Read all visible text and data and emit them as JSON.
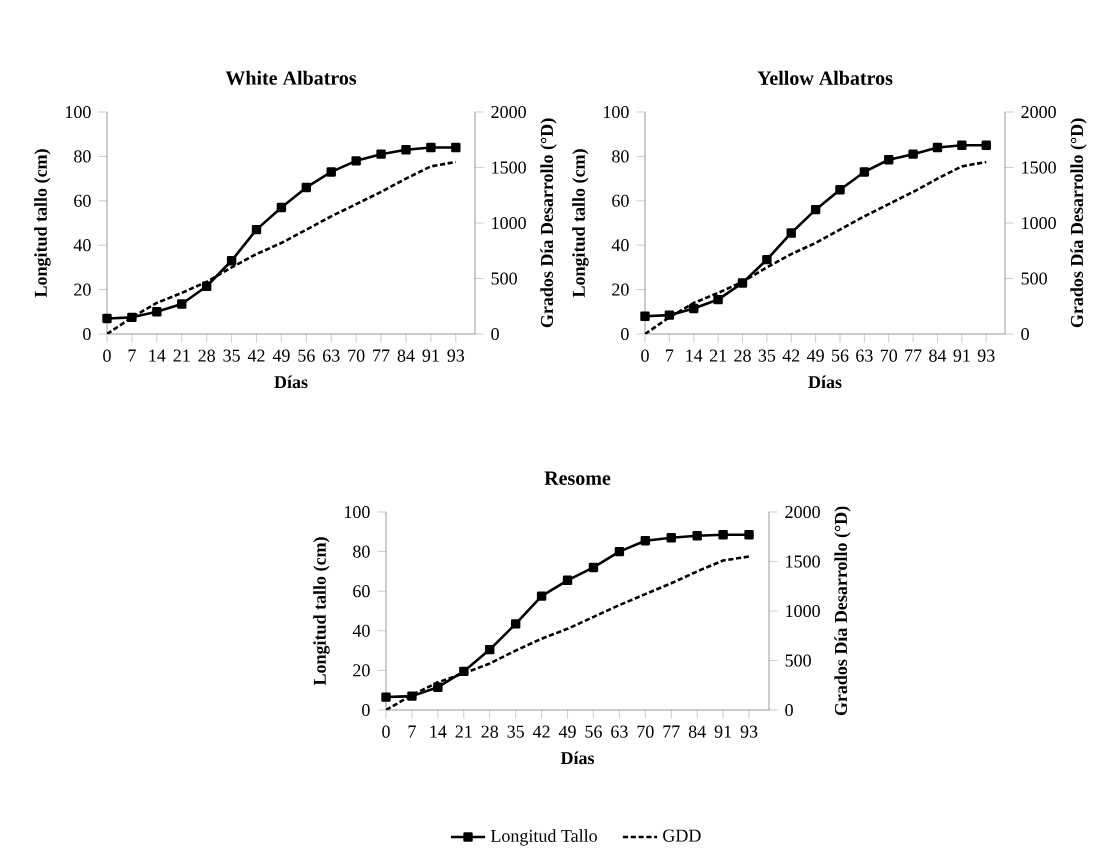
{
  "chart_data": [
    {
      "type": "line",
      "title": "White Albatros",
      "xlabel": "Días",
      "ylabel": "Longitud tallo (cm)",
      "y2label": "Grados Día Desarrollo (°D)",
      "categories": [
        "0",
        "7",
        "14",
        "21",
        "28",
        "35",
        "42",
        "49",
        "56",
        "63",
        "70",
        "77",
        "84",
        "91",
        "93"
      ],
      "series": [
        {
          "color": "#000000",
          "marker": "square",
          "line_style": "solid",
          "values": [
            7,
            7.5,
            10,
            13.5,
            21.5,
            33,
            47,
            57,
            66,
            73,
            78,
            81,
            83,
            84,
            84
          ]
        },
        {
          "color": "#000000",
          "marker": "none",
          "line_style": "dashed",
          "axis": "y2",
          "values": [
            0,
            150,
            280,
            370,
            470,
            600,
            720,
            820,
            940,
            1060,
            1170,
            1280,
            1400,
            1510,
            1550
          ]
        }
      ],
      "ylim": [
        0,
        100
      ],
      "yticks": [
        0,
        20,
        40,
        60,
        80,
        100
      ],
      "y2lim": [
        0,
        2000
      ],
      "y2ticks": [
        0,
        500,
        1000,
        1500,
        2000
      ],
      "grid": false
    },
    {
      "type": "line",
      "title": "Yellow Albatros",
      "xlabel": "Días",
      "ylabel": "Longitud tallo (cm)",
      "y2label": "Grados Día Desarrollo (°D)",
      "categories": [
        "0",
        "7",
        "14",
        "21",
        "28",
        "35",
        "42",
        "49",
        "56",
        "63",
        "70",
        "77",
        "84",
        "91",
        "93"
      ],
      "series": [
        {
          "color": "#000000",
          "marker": "square",
          "line_style": "solid",
          "values": [
            8,
            8.5,
            11.5,
            15.5,
            23,
            33.5,
            45.5,
            56,
            65,
            73,
            78.5,
            81,
            84,
            85,
            85
          ]
        },
        {
          "color": "#000000",
          "marker": "none",
          "line_style": "dashed",
          "axis": "y2",
          "values": [
            0,
            150,
            280,
            370,
            470,
            600,
            720,
            820,
            940,
            1060,
            1170,
            1280,
            1400,
            1510,
            1550
          ]
        }
      ],
      "ylim": [
        0,
        100
      ],
      "yticks": [
        0,
        20,
        40,
        60,
        80,
        100
      ],
      "y2lim": [
        0,
        2000
      ],
      "y2ticks": [
        0,
        500,
        1000,
        1500,
        2000
      ],
      "grid": false
    },
    {
      "type": "line",
      "title": "Resome",
      "xlabel": "Días",
      "ylabel": "Longitud tallo (cm)",
      "y2label": "Grados Día Desarrollo (°D)",
      "categories": [
        "0",
        "7",
        "14",
        "21",
        "28",
        "35",
        "42",
        "49",
        "56",
        "63",
        "70",
        "77",
        "84",
        "91",
        "93"
      ],
      "series": [
        {
          "name": "Longitud Tallo",
          "color": "#000000",
          "marker": "square",
          "line_style": "solid",
          "values": [
            6.5,
            7,
            11.5,
            19.5,
            30.5,
            43.5,
            57.5,
            65.5,
            72,
            80,
            85.5,
            87,
            88,
            88.5,
            88.5
          ]
        },
        {
          "name": "GDD",
          "color": "#000000",
          "marker": "none",
          "line_style": "dashed",
          "axis": "y2",
          "values": [
            0,
            150,
            280,
            370,
            470,
            600,
            720,
            820,
            940,
            1060,
            1170,
            1280,
            1400,
            1510,
            1550
          ]
        }
      ],
      "ylim": [
        0,
        100
      ],
      "yticks": [
        0,
        20,
        40,
        60,
        80,
        100
      ],
      "y2lim": [
        0,
        2000
      ],
      "y2ticks": [
        0,
        500,
        1000,
        1500,
        2000
      ],
      "grid": false,
      "legend": "bottom"
    }
  ]
}
